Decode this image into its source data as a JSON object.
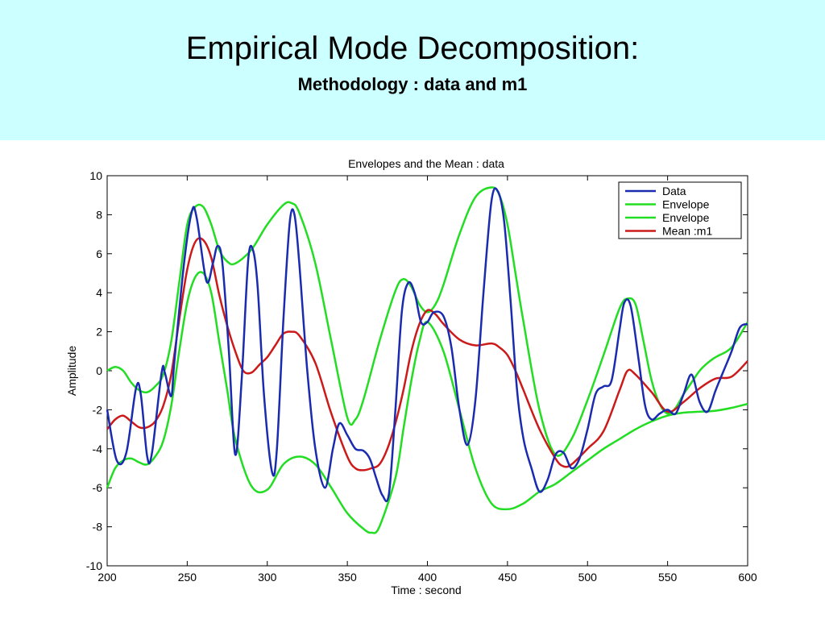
{
  "slide": {
    "title": "Empirical Mode Decomposition:",
    "subtitle": "Methodology : data and m1",
    "header_bg": "#ccffff"
  },
  "chart_data": {
    "type": "line",
    "title": "Envelopes and the Mean : data",
    "xlabel": "Time : second",
    "ylabel": "Amplitude",
    "xlim": [
      200,
      600
    ],
    "ylim": [
      -10,
      10
    ],
    "xticks": [
      200,
      250,
      300,
      350,
      400,
      450,
      500,
      550,
      600
    ],
    "yticks": [
      -10,
      -8,
      -6,
      -4,
      -2,
      0,
      2,
      4,
      6,
      8,
      10
    ],
    "grid": false,
    "legend_position": "top-right",
    "series": [
      {
        "name": "Data",
        "color": "#1a2bb0",
        "x": [
          200,
          206,
          212,
          218,
          221,
          225,
          228,
          234,
          236,
          240,
          242,
          248,
          253,
          256,
          262,
          266,
          269,
          272,
          276,
          280,
          284,
          288,
          291,
          294,
          298,
          303,
          306,
          310,
          314,
          317,
          320,
          325,
          330,
          336,
          341,
          345,
          350,
          355,
          360,
          364,
          368,
          372,
          376,
          380,
          384,
          388,
          392,
          396,
          400,
          404,
          410,
          415,
          420,
          425,
          430,
          435,
          440,
          444,
          448,
          452,
          456,
          460,
          465,
          470,
          475,
          480,
          485,
          490,
          495,
          500,
          505,
          510,
          515,
          520,
          523,
          527,
          532,
          536,
          540,
          545,
          550,
          555,
          560,
          565,
          570,
          575,
          580,
          585,
          590,
          595,
          600
        ],
        "values": [
          -2,
          -4.6,
          -4.2,
          -0.9,
          -1.2,
          -4.4,
          -4.2,
          -0.1,
          -0.1,
          -1.3,
          0.5,
          5.5,
          8.2,
          7.8,
          4.6,
          5.5,
          6.4,
          5.5,
          1,
          -4.3,
          -0.5,
          5.6,
          6.2,
          4.3,
          -1.3,
          -5.2,
          -4,
          2.5,
          7.6,
          8,
          5.5,
          0,
          -4,
          -6,
          -4,
          -2.7,
          -3.3,
          -4,
          -4.1,
          -4.5,
          -5.5,
          -6.4,
          -6.3,
          -2,
          3,
          4.5,
          4,
          2.5,
          2.5,
          3,
          2.8,
          1.2,
          -2,
          -3.8,
          -1.5,
          4,
          8.7,
          9.2,
          7.6,
          3.5,
          -1,
          -3.5,
          -5,
          -6.2,
          -5.6,
          -4.3,
          -4.2,
          -5,
          -4.5,
          -3,
          -1.2,
          -0.8,
          -0.5,
          2.1,
          3.5,
          3.3,
          0.5,
          -1.8,
          -2.5,
          -2.2,
          -2,
          -2.2,
          -1.2,
          -0.2,
          -1.6,
          -2.1,
          -1,
          0,
          1,
          2.2,
          2.4
        ]
      },
      {
        "name": "Envelope",
        "color": "#22dd22",
        "x": [
          200,
          205,
          210,
          215,
          220,
          225,
          230,
          235,
          240,
          245,
          250,
          255,
          260,
          265,
          270,
          275,
          280,
          290,
          300,
          310,
          315,
          320,
          330,
          340,
          350,
          355,
          360,
          370,
          380,
          385,
          390,
          395,
          400,
          405,
          410,
          420,
          430,
          440,
          445,
          450,
          455,
          460,
          470,
          480,
          490,
          500,
          510,
          520,
          525,
          530,
          535,
          540,
          545,
          550,
          555,
          560,
          565,
          570,
          575,
          580,
          590,
          600
        ],
        "values": [
          0,
          0.2,
          0,
          -0.6,
          -1,
          -1.1,
          -0.8,
          -0.2,
          1.5,
          4.5,
          7.5,
          8.4,
          8.4,
          7.5,
          6.2,
          5.6,
          5.5,
          6.2,
          7.5,
          8.5,
          8.6,
          8.1,
          5.5,
          1.5,
          -2.4,
          -2.5,
          -1.5,
          1.5,
          4.1,
          4.7,
          4.3,
          3.4,
          3,
          3.4,
          4.4,
          7,
          8.9,
          9.4,
          9,
          7.5,
          5,
          2.5,
          -2,
          -4.3,
          -3.5,
          -1.5,
          0.8,
          3.2,
          3.7,
          3.4,
          1.5,
          -0.5,
          -1.7,
          -2.2,
          -1.9,
          -1.2,
          -0.6,
          0,
          0.4,
          0.7,
          1.2,
          2.5
        ]
      },
      {
        "name": "Envelope",
        "color": "#22dd22",
        "x": [
          200,
          205,
          210,
          215,
          220,
          225,
          230,
          235,
          240,
          245,
          250,
          255,
          260,
          265,
          270,
          275,
          280,
          290,
          300,
          310,
          320,
          330,
          340,
          350,
          360,
          365,
          370,
          380,
          385,
          390,
          395,
          400,
          410,
          420,
          430,
          440,
          450,
          460,
          470,
          480,
          490,
          500,
          510,
          520,
          530,
          540,
          550,
          560,
          570,
          580,
          590,
          600
        ],
        "values": [
          -6,
          -5,
          -4.6,
          -4.5,
          -4.7,
          -4.8,
          -4.4,
          -3.6,
          -1.8,
          1,
          3.5,
          4.8,
          5,
          4,
          1.5,
          -1,
          -3.5,
          -5.9,
          -6.1,
          -4.8,
          -4.4,
          -4.8,
          -6,
          -7.3,
          -8.1,
          -8.3,
          -8,
          -5.5,
          -3,
          -0.5,
          1.5,
          2.5,
          1,
          -2,
          -5,
          -6.8,
          -7.1,
          -6.8,
          -6.2,
          -5.8,
          -5.2,
          -4.6,
          -4,
          -3.5,
          -3,
          -2.6,
          -2.3,
          -2.15,
          -2.1,
          -2.05,
          -1.9,
          -1.7
        ]
      },
      {
        "name": "Mean :m1",
        "color": "#cc1a1a",
        "x": [
          200,
          205,
          210,
          215,
          220,
          225,
          230,
          235,
          240,
          245,
          250,
          255,
          260,
          265,
          270,
          275,
          280,
          285,
          290,
          295,
          300,
          305,
          310,
          315,
          320,
          330,
          340,
          350,
          355,
          360,
          365,
          370,
          375,
          380,
          385,
          390,
          395,
          400,
          405,
          410,
          420,
          430,
          440,
          445,
          450,
          455,
          460,
          470,
          480,
          485,
          490,
          500,
          510,
          520,
          525,
          530,
          540,
          550,
          560,
          570,
          580,
          590,
          600
        ],
        "values": [
          -3,
          -2.5,
          -2.3,
          -2.6,
          -2.9,
          -2.9,
          -2.6,
          -1.8,
          -0.2,
          2.6,
          5.2,
          6.6,
          6.7,
          5.8,
          3.9,
          2.3,
          1,
          0,
          -0.1,
          0.3,
          0.7,
          1.3,
          1.9,
          2,
          1.8,
          0.4,
          -2.2,
          -4.4,
          -5,
          -5.1,
          -5,
          -4.8,
          -4,
          -2.7,
          -1,
          1,
          2.4,
          3.1,
          2.9,
          2.4,
          1.6,
          1.3,
          1.4,
          1.2,
          0.8,
          0,
          -1,
          -3,
          -4.5,
          -4.9,
          -4.8,
          -4,
          -3.1,
          -1,
          0,
          -0.2,
          -1.1,
          -2.1,
          -1.6,
          -0.9,
          -0.4,
          -0.3,
          0.5
        ]
      }
    ]
  }
}
